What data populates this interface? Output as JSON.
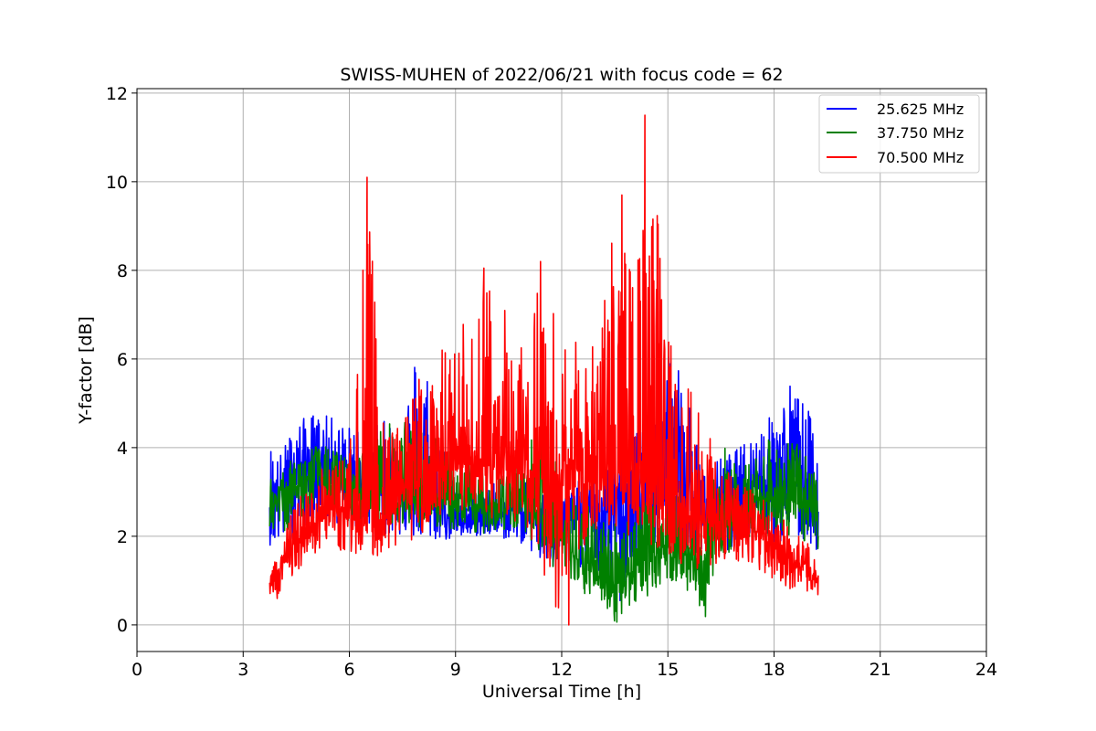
{
  "chart_data": {
    "type": "line",
    "title": "SWISS-MUHEN of 2022/06/21 with focus code = 62",
    "xlabel": "Universal Time [h]",
    "ylabel": "Y-factor [dB]",
    "xlim": [
      0,
      24
    ],
    "ylim": [
      -0.6,
      12.1
    ],
    "xticks": [
      0,
      3,
      6,
      9,
      12,
      15,
      18,
      21,
      24
    ],
    "xtick_labels": [
      "0",
      "3",
      "6",
      "9",
      "12",
      "15",
      "18",
      "21",
      "24"
    ],
    "yticks": [
      0,
      2,
      4,
      6,
      8,
      10,
      12
    ],
    "ytick_labels": [
      "0",
      "2",
      "4",
      "6",
      "8",
      "10",
      "12"
    ],
    "grid": true,
    "legend_position": "top-right",
    "series": [
      {
        "name": "25.625 MHz",
        "color": "#0000ff",
        "x": [
          3.75,
          4.0,
          4.5,
          5.0,
          5.5,
          6.0,
          6.5,
          7.0,
          7.5,
          8.0,
          8.5,
          9.0,
          9.5,
          10.0,
          10.5,
          11.0,
          11.5,
          12.0,
          12.5,
          13.0,
          13.5,
          14.0,
          14.5,
          15.0,
          15.5,
          16.0,
          16.5,
          17.0,
          17.5,
          18.0,
          18.5,
          19.0,
          19.25
        ],
        "values": [
          2.8,
          3.0,
          3.6,
          3.7,
          3.6,
          3.4,
          3.3,
          3.2,
          3.0,
          2.8,
          2.6,
          2.4,
          2.3,
          2.4,
          2.6,
          2.5,
          2.4,
          2.3,
          2.4,
          2.5,
          2.6,
          2.8,
          3.0,
          3.2,
          3.0,
          2.6,
          2.8,
          3.0,
          3.2,
          3.4,
          3.5,
          3.3,
          3.0
        ],
        "upper": [
          4.2,
          3.8,
          4.6,
          4.8,
          4.7,
          4.5,
          4.9,
          4.6,
          4.9,
          6.85,
          4.8,
          3.0,
          3.2,
          3.2,
          3.4,
          3.2,
          3.0,
          3.0,
          3.3,
          3.5,
          3.8,
          4.5,
          5.2,
          6.8,
          5.5,
          3.4,
          3.8,
          4.0,
          4.5,
          4.8,
          5.6,
          4.8,
          4.2
        ],
        "lower": [
          1.8,
          1.7,
          2.0,
          2.4,
          2.3,
          2.2,
          2.1,
          2.0,
          2.0,
          1.9,
          1.9,
          1.9,
          2.0,
          2.0,
          1.9,
          1.8,
          1.2,
          1.1,
          1.3,
          1.2,
          0.0,
          1.2,
          1.5,
          1.9,
          1.7,
          1.6,
          1.6,
          1.8,
          1.9,
          1.8,
          1.8,
          1.8,
          1.6
        ]
      },
      {
        "name": "37.750 MHz",
        "color": "#008000",
        "x": [
          3.75,
          4.0,
          4.5,
          5.0,
          5.5,
          6.0,
          6.5,
          7.0,
          7.5,
          8.0,
          8.5,
          9.0,
          9.5,
          10.0,
          10.5,
          11.0,
          11.5,
          12.0,
          12.5,
          13.0,
          13.5,
          14.0,
          14.5,
          15.0,
          15.5,
          16.0,
          16.5,
          17.0,
          17.5,
          18.0,
          18.5,
          19.0,
          19.25
        ],
        "values": [
          2.6,
          2.8,
          3.1,
          3.3,
          3.2,
          3.0,
          3.0,
          3.0,
          3.0,
          2.9,
          2.8,
          2.7,
          2.6,
          2.7,
          2.8,
          2.8,
          2.5,
          2.0,
          1.4,
          1.1,
          1.0,
          1.2,
          1.6,
          1.8,
          1.6,
          1.2,
          2.2,
          2.6,
          2.8,
          2.9,
          2.8,
          2.6,
          2.4
        ],
        "upper": [
          3.4,
          3.5,
          3.8,
          4.1,
          4.0,
          3.8,
          4.0,
          4.6,
          4.6,
          4.5,
          4.2,
          3.8,
          3.7,
          3.8,
          3.8,
          3.9,
          5.2,
          3.4,
          2.8,
          2.6,
          2.4,
          2.7,
          3.0,
          3.2,
          3.0,
          2.4,
          4.2,
          3.6,
          3.9,
          4.3,
          4.2,
          3.8,
          3.2
        ],
        "lower": [
          1.9,
          2.0,
          2.3,
          2.6,
          2.5,
          2.3,
          2.3,
          2.3,
          2.3,
          2.2,
          2.2,
          2.1,
          2.0,
          2.1,
          2.1,
          2.1,
          1.4,
          1.2,
          0.6,
          0.7,
          0.0,
          0.4,
          0.7,
          1.0,
          0.8,
          0.0,
          1.5,
          1.8,
          2.0,
          2.0,
          2.0,
          1.8,
          1.7
        ]
      },
      {
        "name": "70.500 MHz",
        "color": "#ff0000",
        "x": [
          3.75,
          4.0,
          4.5,
          5.0,
          5.5,
          6.0,
          6.5,
          7.0,
          7.5,
          8.0,
          8.5,
          9.0,
          9.5,
          10.0,
          10.5,
          11.0,
          11.5,
          12.0,
          12.5,
          13.0,
          13.5,
          14.0,
          14.5,
          15.0,
          15.5,
          16.0,
          16.5,
          17.0,
          17.5,
          18.0,
          18.5,
          19.0,
          19.25
        ],
        "values": [
          1.0,
          1.2,
          1.8,
          2.4,
          2.6,
          2.5,
          2.3,
          2.4,
          3.0,
          3.3,
          3.4,
          3.5,
          3.6,
          3.6,
          3.5,
          3.6,
          3.2,
          3.4,
          3.6,
          3.4,
          3.5,
          3.5,
          3.3,
          3.0,
          2.6,
          2.3,
          2.3,
          2.3,
          2.2,
          1.8,
          1.4,
          1.2,
          1.0
        ],
        "upper": [
          1.5,
          1.8,
          2.8,
          3.4,
          3.7,
          3.9,
          10.1,
          4.2,
          4.6,
          5.8,
          6.2,
          6.4,
          7.4,
          8.05,
          7.0,
          7.2,
          8.2,
          6.4,
          6.5,
          6.2,
          9.7,
          8.0,
          11.5,
          6.6,
          6.2,
          5.0,
          3.6,
          3.2,
          3.0,
          2.6,
          2.2,
          1.8,
          1.4
        ],
        "lower": [
          0.55,
          0.6,
          1.2,
          1.6,
          1.7,
          1.6,
          1.5,
          1.6,
          1.8,
          2.0,
          2.2,
          2.3,
          2.4,
          2.4,
          2.3,
          2.2,
          1.1,
          0.0,
          1.6,
          1.8,
          2.0,
          2.0,
          1.8,
          1.6,
          1.3,
          1.2,
          1.4,
          1.4,
          1.3,
          1.0,
          0.8,
          0.7,
          0.65
        ],
        "spikes": [
          {
            "x": 6.5,
            "y": 10.1
          },
          {
            "x": 9.8,
            "y": 8.05
          },
          {
            "x": 11.4,
            "y": 8.2
          },
          {
            "x": 12.2,
            "y": 0.0
          },
          {
            "x": 13.7,
            "y": 9.7
          },
          {
            "x": 14.3,
            "y": 8.9
          },
          {
            "x": 14.35,
            "y": 11.5
          }
        ]
      }
    ]
  }
}
